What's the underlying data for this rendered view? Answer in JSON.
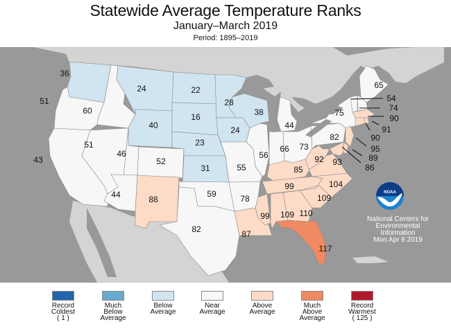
{
  "header": {
    "title": "Statewide Average Temperature Ranks",
    "subtitle": "January–March 2019",
    "period": "Period: 1895–2019"
  },
  "credit": {
    "logo_text": "NOAA",
    "line1": "National Centers for",
    "line2": "Environmental",
    "line3": "Information",
    "date": "Mon Apr  8 2019"
  },
  "colors": {
    "record_coldest": "#2166ac",
    "much_below": "#67a9cf",
    "below": "#d1e5f0",
    "near": "#f7f7f7",
    "above": "#fddbc7",
    "much_above": "#ef8a62",
    "record_warmest": "#b2182b",
    "ocean": "#999999",
    "land_other": "#d4d4d4"
  },
  "legend": [
    {
      "key": "record_coldest",
      "lines": [
        "Record",
        "Coldest",
        "( 1 )"
      ]
    },
    {
      "key": "much_below",
      "lines": [
        "Much",
        "Below",
        "Average"
      ]
    },
    {
      "key": "below",
      "lines": [
        "Below",
        "Average"
      ]
    },
    {
      "key": "near",
      "lines": [
        "Near",
        "Average"
      ]
    },
    {
      "key": "above",
      "lines": [
        "Above",
        "Average"
      ]
    },
    {
      "key": "much_above",
      "lines": [
        "Much",
        "Above",
        "Average"
      ]
    },
    {
      "key": "record_warmest",
      "lines": [
        "Record",
        "Warmest",
        "( 125 )"
      ]
    }
  ],
  "states": [
    {
      "abbr": "WA",
      "rank": 36,
      "category": "below"
    },
    {
      "abbr": "OR",
      "rank": 51,
      "category": "near"
    },
    {
      "abbr": "CA",
      "rank": 43,
      "category": "near"
    },
    {
      "abbr": "ID",
      "rank": 60,
      "category": "near"
    },
    {
      "abbr": "NV",
      "rank": 51,
      "category": "near"
    },
    {
      "abbr": "MT",
      "rank": 24,
      "category": "below"
    },
    {
      "abbr": "WY",
      "rank": 40,
      "category": "below"
    },
    {
      "abbr": "UT",
      "rank": 46,
      "category": "near"
    },
    {
      "abbr": "AZ",
      "rank": 44,
      "category": "near"
    },
    {
      "abbr": "CO",
      "rank": 52,
      "category": "near"
    },
    {
      "abbr": "NM",
      "rank": 88,
      "category": "above"
    },
    {
      "abbr": "ND",
      "rank": 22,
      "category": "below"
    },
    {
      "abbr": "SD",
      "rank": 16,
      "category": "below"
    },
    {
      "abbr": "NE",
      "rank": 23,
      "category": "below"
    },
    {
      "abbr": "KS",
      "rank": 31,
      "category": "below"
    },
    {
      "abbr": "OK",
      "rank": 59,
      "category": "near"
    },
    {
      "abbr": "TX",
      "rank": 82,
      "category": "near"
    },
    {
      "abbr": "MN",
      "rank": 28,
      "category": "below"
    },
    {
      "abbr": "IA",
      "rank": 24,
      "category": "below"
    },
    {
      "abbr": "MO",
      "rank": 55,
      "category": "near"
    },
    {
      "abbr": "AR",
      "rank": 78,
      "category": "near"
    },
    {
      "abbr": "LA",
      "rank": 87,
      "category": "above"
    },
    {
      "abbr": "WI",
      "rank": 38,
      "category": "below"
    },
    {
      "abbr": "IL",
      "rank": 56,
      "category": "near"
    },
    {
      "abbr": "MI",
      "rank": 44,
      "category": "near"
    },
    {
      "abbr": "IN",
      "rank": 66,
      "category": "near"
    },
    {
      "abbr": "OH",
      "rank": 73,
      "category": "near"
    },
    {
      "abbr": "KY",
      "rank": 85,
      "category": "above"
    },
    {
      "abbr": "TN",
      "rank": 99,
      "category": "above"
    },
    {
      "abbr": "MS",
      "rank": 99,
      "category": "above"
    },
    {
      "abbr": "AL",
      "rank": 109,
      "category": "above"
    },
    {
      "abbr": "GA",
      "rank": 110,
      "category": "above"
    },
    {
      "abbr": "FL",
      "rank": 117,
      "category": "much_above"
    },
    {
      "abbr": "SC",
      "rank": 109,
      "category": "above"
    },
    {
      "abbr": "NC",
      "rank": 104,
      "category": "above"
    },
    {
      "abbr": "VA",
      "rank": 93,
      "category": "above"
    },
    {
      "abbr": "WV",
      "rank": 92,
      "category": "above"
    },
    {
      "abbr": "PA",
      "rank": 82,
      "category": "near"
    },
    {
      "abbr": "NY",
      "rank": 75,
      "category": "near"
    },
    {
      "abbr": "ME",
      "rank": 65,
      "category": "near"
    },
    {
      "abbr": "VT",
      "rank": 54,
      "category": "near"
    },
    {
      "abbr": "NH",
      "rank": 74,
      "category": "near"
    },
    {
      "abbr": "MA",
      "rank": 90,
      "category": "above"
    },
    {
      "abbr": "RI",
      "rank": 91,
      "category": "above"
    },
    {
      "abbr": "CT",
      "rank": 90,
      "category": "above"
    },
    {
      "abbr": "NJ",
      "rank": 95,
      "category": "above"
    },
    {
      "abbr": "DE",
      "rank": 89,
      "category": "above"
    },
    {
      "abbr": "MD",
      "rank": 86,
      "category": "above"
    }
  ]
}
